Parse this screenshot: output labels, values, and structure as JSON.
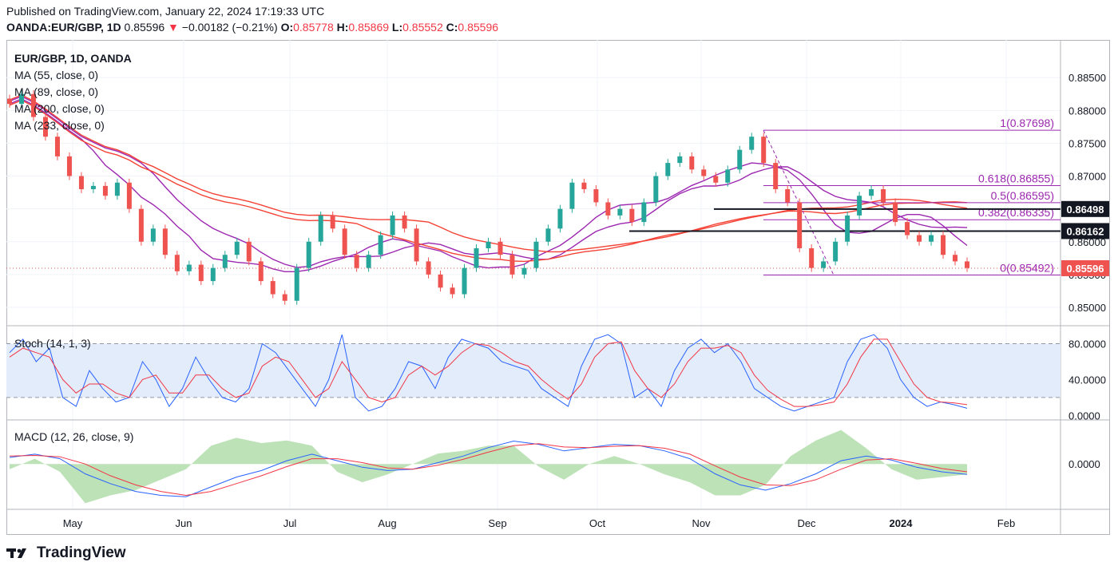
{
  "header": {
    "published": "Published on TradingView.com, January 22, 2024 17:19:33 UTC",
    "symbol": "OANDA:EUR/GBP, 1D",
    "price": "0.85596",
    "change": "−0.00182 (−0.21%)",
    "o_label": "O:",
    "o_value": "0.85778",
    "h_label": "H:",
    "h_value": "0.85869",
    "l_label": "L:",
    "l_value": "0.85552",
    "c_label": "C:",
    "c_value": "0.85596"
  },
  "main_legend": {
    "title": "EUR/GBP, 1D, OANDA",
    "ma1": "MA (55, close, 0)",
    "ma2": "MA (89, close, 0)",
    "ma3": "MA (200, close, 0)",
    "ma4": "MA (233, close, 0)"
  },
  "stoch_legend": "Stoch (14, 1, 3)",
  "macd_legend": "MACD (12, 26, close, 9)",
  "footer": {
    "brand": "TradingView"
  },
  "colors": {
    "up": "#26a69a",
    "down": "#ef5350",
    "ma_purple": "#9c27b0",
    "ma_red": "#f44336",
    "fib": "#9c27b0",
    "stoch_k": "#2962ff",
    "stoch_d": "#f23645",
    "macd_hist": "#b7dfb0"
  },
  "chart_data": [
    {
      "type": "candlestick",
      "title": "EUR/GBP, 1D, OANDA",
      "xlabel": "",
      "ylabel": "",
      "x_ticks": [
        "May",
        "Jun",
        "Jul",
        "Aug",
        "Sep",
        "Oct",
        "Nov",
        "Dec",
        "2024",
        "Feb"
      ],
      "y_ticks": [
        "0.88500",
        "0.88000",
        "0.87500",
        "0.87000",
        "0.86500",
        "0.86000",
        "0.85500",
        "0.85000"
      ],
      "ylim": [
        0.8472,
        0.8905
      ],
      "candles_approx_close": [
        0.881,
        0.8825,
        0.879,
        0.876,
        0.873,
        0.87,
        0.868,
        0.8685,
        0.867,
        0.869,
        0.865,
        0.86,
        0.862,
        0.858,
        0.8555,
        0.8565,
        0.854,
        0.856,
        0.858,
        0.86,
        0.857,
        0.854,
        0.852,
        0.851,
        0.856,
        0.86,
        0.864,
        0.862,
        0.858,
        0.856,
        0.858,
        0.861,
        0.864,
        0.862,
        0.857,
        0.855,
        0.853,
        0.852,
        0.856,
        0.859,
        0.86,
        0.858,
        0.855,
        0.856,
        0.86,
        0.862,
        0.865,
        0.869,
        0.868,
        0.866,
        0.864,
        0.865,
        0.863,
        0.866,
        0.87,
        0.872,
        0.873,
        0.871,
        0.87,
        0.869,
        0.871,
        0.874,
        0.876,
        0.872,
        0.868,
        0.866,
        0.859,
        0.856,
        0.857,
        0.86,
        0.864,
        0.867,
        0.868,
        0.866,
        0.863,
        0.861,
        0.86,
        0.861,
        0.858,
        0.857,
        0.856
      ],
      "moving_averages": [
        {
          "name": "MA (55, close, 0)",
          "color": "#9c27b0"
        },
        {
          "name": "MA (89, close, 0)",
          "color": "#9c27b0"
        },
        {
          "name": "MA (200, close, 0)",
          "color": "#f44336"
        },
        {
          "name": "MA (233, close, 0)",
          "color": "#f44336"
        }
      ],
      "fibonacci_levels": [
        {
          "label": "1(0.87698)",
          "value": 0.87698
        },
        {
          "label": "0.618(0.86855)",
          "value": 0.86855
        },
        {
          "label": "0.5(0.86595)",
          "value": 0.86595
        },
        {
          "label": "0.382(0.86335)",
          "value": 0.86335
        },
        {
          "label": "0(0.85492)",
          "value": 0.85492
        }
      ],
      "horizontal_lines": [
        {
          "label": "0.86498",
          "value": 0.86498
        },
        {
          "label": "0.86162",
          "value": 0.86162
        }
      ],
      "last_price": {
        "label": "0.85596",
        "value": 0.85596
      }
    },
    {
      "type": "line",
      "title": "Stoch (14, 1, 3)",
      "y_ticks": [
        "80.0000",
        "40.0000",
        "0.0000"
      ],
      "ylim": [
        -5,
        100
      ],
      "bands": [
        20,
        80
      ],
      "series": [
        {
          "name": "%K",
          "values": [
            70,
            85,
            60,
            75,
            20,
            10,
            50,
            30,
            15,
            20,
            60,
            40,
            10,
            30,
            65,
            40,
            20,
            15,
            30,
            80,
            70,
            50,
            30,
            10,
            40,
            90,
            20,
            5,
            10,
            30,
            60,
            55,
            30,
            65,
            85,
            80,
            75,
            60,
            55,
            50,
            30,
            20,
            10,
            55,
            85,
            90,
            80,
            20,
            30,
            10,
            50,
            75,
            85,
            70,
            80,
            60,
            30,
            20,
            10,
            5,
            10,
            15,
            20,
            60,
            85,
            90,
            75,
            40,
            20,
            10,
            15,
            12,
            8
          ]
        },
        {
          "name": "%D",
          "values": [
            65,
            75,
            70,
            65,
            40,
            25,
            35,
            35,
            25,
            20,
            40,
            45,
            25,
            25,
            45,
            45,
            30,
            20,
            25,
            55,
            65,
            60,
            40,
            20,
            30,
            60,
            40,
            20,
            15,
            20,
            45,
            55,
            45,
            55,
            70,
            80,
            78,
            70,
            60,
            55,
            40,
            28,
            18,
            35,
            65,
            80,
            82,
            50,
            30,
            20,
            35,
            60,
            75,
            75,
            78,
            70,
            45,
            28,
            18,
            10,
            10,
            12,
            15,
            35,
            65,
            85,
            85,
            60,
            35,
            20,
            15,
            14,
            12
          ]
        }
      ]
    },
    {
      "type": "line",
      "title": "MACD (12, 26, close, 9)",
      "y_ticks": [
        "0.0000"
      ],
      "series": [
        {
          "name": "MACD",
          "values": [
            0.001,
            0.0015,
            0.0008,
            -0.0015,
            -0.003,
            -0.0042,
            -0.0048,
            -0.005,
            -0.0035,
            -0.002,
            -0.001,
            0.0005,
            0.0015,
            0.0005,
            -0.0005,
            -0.001,
            -0.0008,
            0.0002,
            0.0012,
            0.0025,
            0.0035,
            0.003,
            0.002,
            0.0025,
            0.003,
            0.0028,
            0.002,
            0.0008,
            -0.0015,
            -0.0032,
            -0.004,
            -0.003,
            -0.0015,
            0.0005,
            0.0012,
            0.0006,
            -0.0005,
            -0.0012,
            -0.0016
          ]
        },
        {
          "name": "Signal",
          "values": [
            0.0012,
            0.0013,
            0.0011,
            0.0,
            -0.0018,
            -0.0032,
            -0.0042,
            -0.0048,
            -0.0042,
            -0.003,
            -0.0018,
            -0.0004,
            0.0008,
            0.0008,
            0.0002,
            -0.0006,
            -0.0008,
            -0.0002,
            0.0007,
            0.0018,
            0.0028,
            0.0031,
            0.0026,
            0.0025,
            0.0027,
            0.0028,
            0.0024,
            0.0015,
            -0.0003,
            -0.002,
            -0.0032,
            -0.0033,
            -0.0024,
            -0.0008,
            0.0006,
            0.0008,
            0.0001,
            -0.0007,
            -0.0012
          ]
        }
      ]
    }
  ]
}
